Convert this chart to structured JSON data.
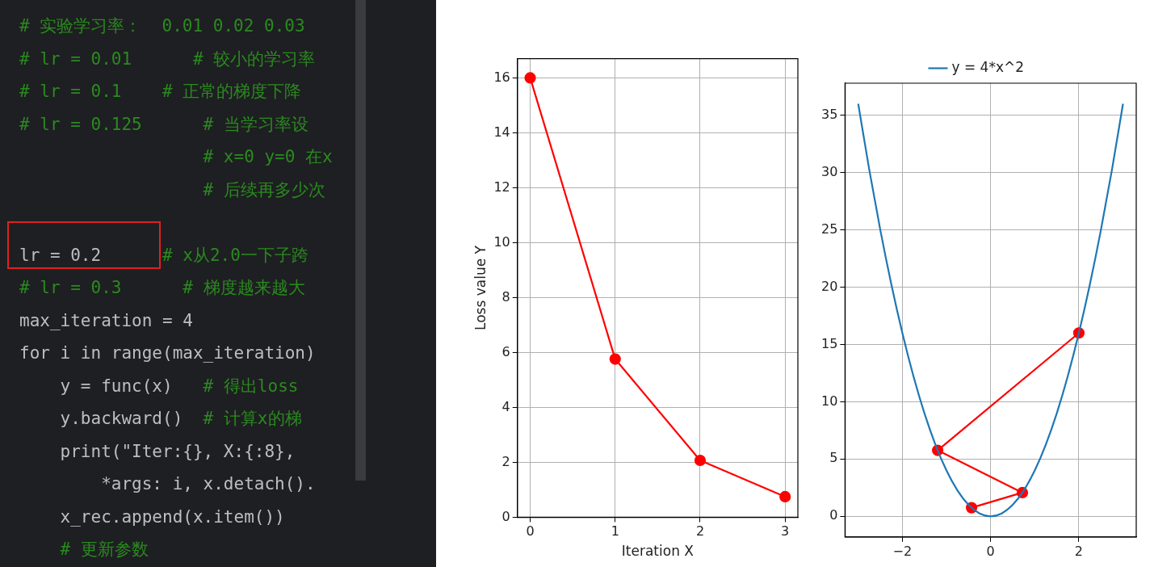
{
  "chart_data": [
    {
      "type": "other",
      "annotations": [
        "# 实验学习率：  0.01 0.02 0.03",
        "# lr = 0.01      # 较小的学习率",
        "# lr = 0.1    # 正常的梯度下降",
        "# lr = 0.125      # 当学习率设",
        "                  # x=0 y=0 在x",
        "                  # 后续再多少次",
        "lr = 0.2      # x从2.0一下子跨",
        "# lr = 0.3      # 梯度越来越大",
        "max_iteration = 4",
        "for i in range(max_iteration)",
        "    y = func(x)   # 得出loss",
        "    y.backward()  # 计算x的梯",
        "    print(\"Iter:{}, X:{:8}, ",
        "        *args: i, x.detach().",
        "    x_rec.append(x.item())",
        "    # 更新参数"
      ]
    },
    {
      "type": "line",
      "xlabel": "Iteration X",
      "ylabel": "Loss value Y",
      "x": [
        0,
        1,
        2,
        3
      ],
      "series": [
        {
          "color": "#ff0000",
          "values": [
            16,
            5.76,
            2.07,
            0.75
          ]
        }
      ],
      "marker": "circle",
      "grid": true,
      "legend": false,
      "xlim": [
        -0.15,
        3.15
      ],
      "xticks": [
        0,
        1,
        2,
        3
      ],
      "ylim": [
        0,
        16.7
      ],
      "yticks": [
        0,
        2,
        4,
        6,
        8,
        10,
        12,
        14,
        16
      ]
    },
    {
      "type": "line",
      "series": [
        {
          "name": "y = 4*x^2",
          "color": "#1f77b4",
          "marker": "none",
          "x": [
            -3,
            -2.75,
            -2.5,
            -2.25,
            -2,
            -1.75,
            -1.5,
            -1.25,
            -1,
            -0.75,
            -0.5,
            -0.25,
            0,
            0.25,
            0.5,
            0.75,
            1,
            1.25,
            1.5,
            1.75,
            2,
            2.25,
            2.5,
            2.75,
            3
          ],
          "values": [
            36,
            30.25,
            25,
            20.25,
            16,
            12.25,
            9,
            6.25,
            4,
            2.25,
            1,
            0.25,
            0,
            0.25,
            1,
            2.25,
            4,
            6.25,
            9,
            12.25,
            16,
            20.25,
            25,
            30.25,
            36
          ]
        },
        {
          "color": "#ff0000",
          "marker": "circle",
          "x": [
            2,
            -1.2,
            0.72,
            -0.432
          ],
          "values": [
            16,
            5.76,
            2.07,
            0.75
          ]
        }
      ],
      "grid": true,
      "legend": "top",
      "xlim": [
        -3.3,
        3.3
      ],
      "xticks": [
        {
          "value": -2,
          "label": "−2"
        },
        0,
        2
      ],
      "ylim": [
        -1.8,
        37.8
      ],
      "yticks": [
        0,
        5,
        10,
        15,
        20,
        25,
        30,
        35
      ]
    }
  ]
}
